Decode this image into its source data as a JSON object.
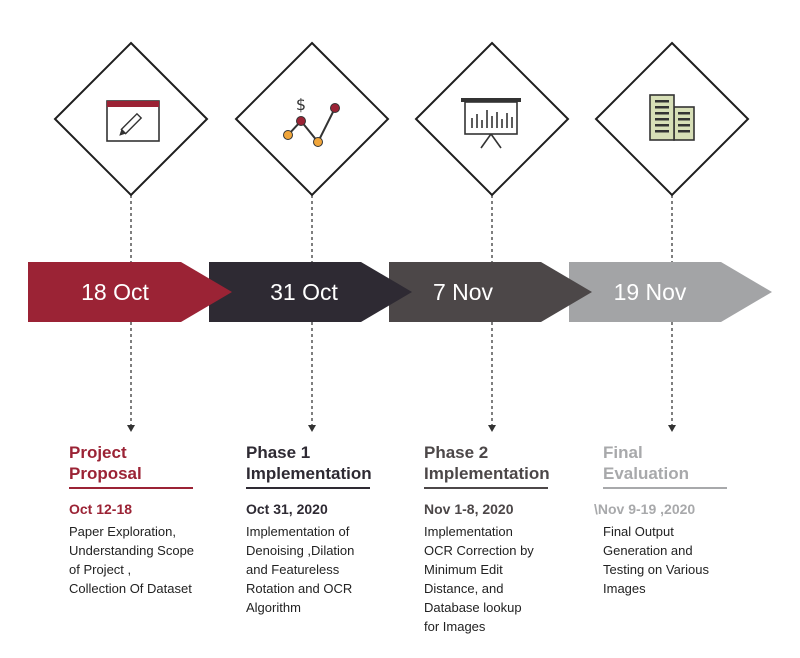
{
  "colors": {
    "maroon": "#9b2335",
    "dark": "#2e2a33",
    "charcoal": "#4c4748",
    "gray": "#a3a4a6",
    "light_text": "#a8a9ab",
    "connector": "#555555"
  },
  "milestones": [
    {
      "date_label": "18 Oct",
      "icon": "browser-edit-icon",
      "title": "Project\nProposal",
      "date": "Oct 12-18",
      "desc": "Paper Exploration,\nUnderstanding Scope\nof Project ,\nCollection Of Dataset"
    },
    {
      "date_label": "31 Oct",
      "icon": "dollar-trend-icon",
      "title": "Phase 1\nImplementation",
      "date": "Oct 31, 2020",
      "desc": "Implementation of\nDenoising ,Dilation\nand Featureless\nRotation and OCR\nAlgorithm"
    },
    {
      "date_label": "7 Nov",
      "icon": "presentation-board-icon",
      "title": "Phase 2\nImplementation",
      "date": "Nov 1-8, 2020",
      "desc": "Implementation\nOCR Correction by\nMinimum Edit\nDistance, and\nDatabase lookup\nfor Images"
    },
    {
      "date_label": "19 Nov",
      "icon": "buildings-icon",
      "title": "Final\nEvaluation",
      "date": "\\Nov 9-19 ,2020",
      "desc": "Final Output\nGeneration and\nTesting on Various\nImages"
    }
  ]
}
